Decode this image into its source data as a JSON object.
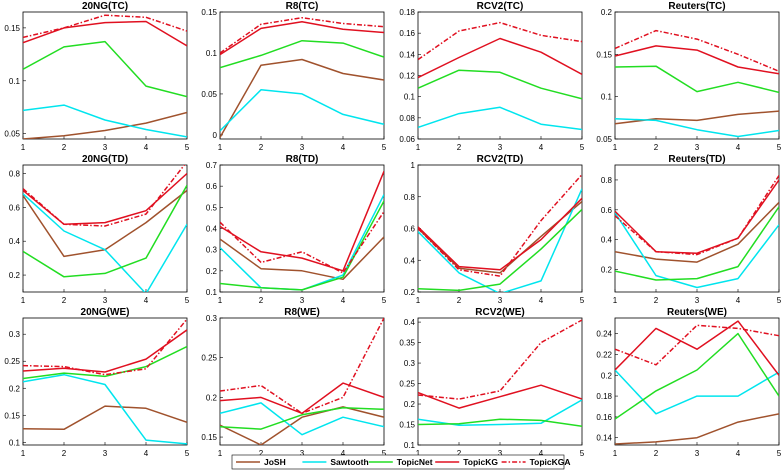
{
  "chart_data": [
    {
      "type": "line",
      "title": "20NG(TC)",
      "x": [
        1,
        2,
        3,
        4,
        5
      ],
      "ylim": [
        0.045,
        0.165
      ],
      "yticks": [
        0.05,
        0.1,
        0.15
      ],
      "ytick_labels": [
        "0.05",
        "0.1",
        "0.15"
      ],
      "series": [
        {
          "name": "JoSH",
          "values": [
            0.045,
            0.048,
            0.053,
            0.06,
            0.07
          ]
        },
        {
          "name": "Sawtooth",
          "values": [
            0.072,
            0.077,
            0.063,
            0.054,
            0.047
          ]
        },
        {
          "name": "TopicNet",
          "values": [
            0.111,
            0.132,
            0.137,
            0.095,
            0.085
          ]
        },
        {
          "name": "TopicKG",
          "values": [
            0.136,
            0.15,
            0.155,
            0.156,
            0.133
          ]
        },
        {
          "name": "TopicKGA",
          "values": [
            0.141,
            0.15,
            0.162,
            0.16,
            0.147
          ]
        }
      ]
    },
    {
      "type": "line",
      "title": "R8(TC)",
      "x": [
        1,
        2,
        3,
        4,
        5
      ],
      "ylim": [
        -0.005,
        0.15
      ],
      "yticks": [
        0,
        0.05,
        0.1,
        0.15
      ],
      "ytick_labels": [
        "0",
        "0.05",
        "0.1",
        "0.15"
      ],
      "series": [
        {
          "name": "JoSH",
          "values": [
            -0.003,
            0.085,
            0.092,
            0.075,
            0.067
          ]
        },
        {
          "name": "Sawtooth",
          "values": [
            0.005,
            0.055,
            0.05,
            0.025,
            0.013
          ]
        },
        {
          "name": "TopicNet",
          "values": [
            0.082,
            0.097,
            0.115,
            0.112,
            0.095
          ]
        },
        {
          "name": "TopicKG",
          "values": [
            0.098,
            0.13,
            0.138,
            0.129,
            0.125
          ]
        },
        {
          "name": "TopicKGA",
          "values": [
            0.1,
            0.135,
            0.143,
            0.136,
            0.132
          ]
        }
      ]
    },
    {
      "type": "line",
      "title": "RCV2(TC)",
      "x": [
        1,
        2,
        3,
        4,
        5
      ],
      "ylim": [
        0.06,
        0.18
      ],
      "yticks": [
        0.06,
        0.08,
        0.1,
        0.12,
        0.14,
        0.16,
        0.18
      ],
      "ytick_labels": [
        "0.06",
        "0.08",
        "0.1",
        "0.12",
        "0.14",
        "0.16",
        "0.18"
      ],
      "series": [
        {
          "name": "Sawtooth",
          "values": [
            0.071,
            0.084,
            0.09,
            0.074,
            0.069
          ]
        },
        {
          "name": "TopicNet",
          "values": [
            0.108,
            0.125,
            0.123,
            0.108,
            0.098
          ]
        },
        {
          "name": "TopicKG",
          "values": [
            0.118,
            0.137,
            0.155,
            0.142,
            0.121
          ]
        },
        {
          "name": "TopicKGA",
          "values": [
            0.135,
            0.162,
            0.17,
            0.158,
            0.152
          ]
        }
      ]
    },
    {
      "type": "line",
      "title": "Reuters(TC)",
      "x": [
        1,
        2,
        3,
        4,
        5
      ],
      "ylim": [
        0.05,
        0.2
      ],
      "yticks": [
        0.05,
        0.1,
        0.15,
        0.2
      ],
      "ytick_labels": [
        "0.05",
        "0.1",
        "0.15",
        "0.2"
      ],
      "series": [
        {
          "name": "JoSH",
          "values": [
            0.068,
            0.074,
            0.072,
            0.079,
            0.083
          ]
        },
        {
          "name": "Sawtooth",
          "values": [
            0.074,
            0.072,
            0.061,
            0.053,
            0.06
          ]
        },
        {
          "name": "TopicNet",
          "values": [
            0.135,
            0.136,
            0.106,
            0.117,
            0.105
          ]
        },
        {
          "name": "TopicKG",
          "values": [
            0.148,
            0.16,
            0.155,
            0.135,
            0.127
          ]
        },
        {
          "name": "TopicKGA",
          "values": [
            0.157,
            0.178,
            0.168,
            0.15,
            0.13
          ]
        }
      ]
    },
    {
      "type": "line",
      "title": "20NG(TD)",
      "x": [
        1,
        2,
        3,
        4,
        5
      ],
      "ylim": [
        0.1,
        0.85
      ],
      "yticks": [
        0.2,
        0.4,
        0.6,
        0.8
      ],
      "ytick_labels": [
        "0.2",
        "0.4",
        "0.6",
        "0.8"
      ],
      "series": [
        {
          "name": "JoSH",
          "values": [
            0.67,
            0.31,
            0.35,
            0.51,
            0.7
          ]
        },
        {
          "name": "Sawtooth",
          "values": [
            0.68,
            0.46,
            0.35,
            0.09,
            0.5
          ]
        },
        {
          "name": "TopicNet",
          "values": [
            0.34,
            0.19,
            0.21,
            0.3,
            0.73
          ]
        },
        {
          "name": "TopicKG",
          "values": [
            0.7,
            0.5,
            0.51,
            0.58,
            0.8
          ]
        },
        {
          "name": "TopicKGA",
          "values": [
            0.71,
            0.5,
            0.49,
            0.56,
            0.87
          ]
        }
      ]
    },
    {
      "type": "line",
      "title": "R8(TD)",
      "x": [
        1,
        2,
        3,
        4,
        5
      ],
      "ylim": [
        0.1,
        0.7
      ],
      "yticks": [
        0.1,
        0.2,
        0.3,
        0.4,
        0.5,
        0.6,
        0.7
      ],
      "ytick_labels": [
        "0.1",
        "0.2",
        "0.3",
        "0.4",
        "0.5",
        "0.6",
        "0.7"
      ],
      "series": [
        {
          "name": "JoSH",
          "values": [
            0.35,
            0.21,
            0.2,
            0.16,
            0.36
          ]
        },
        {
          "name": "Sawtooth",
          "values": [
            0.31,
            0.12,
            0.11,
            0.18,
            0.56
          ]
        },
        {
          "name": "TopicNet",
          "values": [
            0.14,
            0.12,
            0.11,
            0.17,
            0.53
          ]
        },
        {
          "name": "TopicKG",
          "values": [
            0.41,
            0.29,
            0.26,
            0.2,
            0.67
          ]
        },
        {
          "name": "TopicKGA",
          "values": [
            0.43,
            0.24,
            0.29,
            0.19,
            0.48
          ]
        }
      ]
    },
    {
      "type": "line",
      "title": "RCV2(TD)",
      "x": [
        1,
        2,
        3,
        4,
        5
      ],
      "ylim": [
        0.2,
        1.0
      ],
      "yticks": [
        0.2,
        0.4,
        0.6,
        0.8,
        1.0
      ],
      "ytick_labels": [
        "0.2",
        "0.4",
        "0.6",
        "0.8",
        "1"
      ],
      "series": [
        {
          "name": "JoSH",
          "values": [
            0.6,
            0.35,
            0.32,
            0.55,
            0.77
          ]
        },
        {
          "name": "Sawtooth",
          "values": [
            0.58,
            0.32,
            0.19,
            0.27,
            0.85
          ]
        },
        {
          "name": "TopicNet",
          "values": [
            0.22,
            0.21,
            0.25,
            0.47,
            0.72
          ]
        },
        {
          "name": "TopicKG",
          "values": [
            0.61,
            0.36,
            0.34,
            0.53,
            0.79
          ]
        },
        {
          "name": "TopicKGA",
          "values": [
            0.6,
            0.34,
            0.3,
            0.65,
            0.94
          ]
        }
      ]
    },
    {
      "type": "line",
      "title": "Reuters(TD)",
      "x": [
        1,
        2,
        3,
        4,
        5
      ],
      "ylim": [
        0.05,
        0.9
      ],
      "yticks": [
        0.2,
        0.4,
        0.6,
        0.8
      ],
      "ytick_labels": [
        "0.2",
        "0.4",
        "0.6",
        "0.8"
      ],
      "series": [
        {
          "name": "JoSH",
          "values": [
            0.32,
            0.27,
            0.25,
            0.37,
            0.65
          ]
        },
        {
          "name": "Sawtooth",
          "values": [
            0.58,
            0.16,
            0.08,
            0.14,
            0.5
          ]
        },
        {
          "name": "TopicNet",
          "values": [
            0.19,
            0.13,
            0.14,
            0.22,
            0.62
          ]
        },
        {
          "name": "TopicKG",
          "values": [
            0.59,
            0.32,
            0.31,
            0.41,
            0.8
          ]
        },
        {
          "name": "TopicKGA",
          "values": [
            0.56,
            0.32,
            0.3,
            0.41,
            0.83
          ]
        }
      ]
    },
    {
      "type": "line",
      "title": "20NG(WE)",
      "x": [
        1,
        2,
        3,
        4,
        5
      ],
      "ylim": [
        0.095,
        0.33
      ],
      "yticks": [
        0.1,
        0.15,
        0.2,
        0.25,
        0.3
      ],
      "ytick_labels": [
        "0.1",
        "0.15",
        "0.2",
        "0.25",
        "0.3"
      ],
      "series": [
        {
          "name": "JoSH",
          "values": [
            0.125,
            0.124,
            0.167,
            0.163,
            0.137
          ]
        },
        {
          "name": "Sawtooth",
          "values": [
            0.212,
            0.225,
            0.207,
            0.104,
            0.097
          ]
        },
        {
          "name": "TopicNet",
          "values": [
            0.218,
            0.228,
            0.222,
            0.24,
            0.277
          ]
        },
        {
          "name": "TopicKG",
          "values": [
            0.232,
            0.237,
            0.23,
            0.254,
            0.308
          ]
        },
        {
          "name": "TopicKGA",
          "values": [
            0.242,
            0.24,
            0.225,
            0.236,
            0.328
          ]
        }
      ]
    },
    {
      "type": "line",
      "title": "R8(WE)",
      "x": [
        1,
        2,
        3,
        4,
        5
      ],
      "ylim": [
        0.14,
        0.3
      ],
      "yticks": [
        0.15,
        0.2,
        0.25,
        0.3
      ],
      "ytick_labels": [
        "0.15",
        "0.2",
        "0.25",
        "0.3"
      ],
      "series": [
        {
          "name": "JoSH",
          "values": [
            0.165,
            0.14,
            0.175,
            0.188,
            0.175
          ]
        },
        {
          "name": "Sawtooth",
          "values": [
            0.18,
            0.193,
            0.153,
            0.175,
            0.163
          ]
        },
        {
          "name": "TopicNet",
          "values": [
            0.163,
            0.16,
            0.178,
            0.187,
            0.185
          ]
        },
        {
          "name": "TopicKG",
          "values": [
            0.196,
            0.2,
            0.18,
            0.218,
            0.2
          ]
        },
        {
          "name": "TopicKGA",
          "values": [
            0.208,
            0.215,
            0.18,
            0.2,
            0.3
          ]
        }
      ]
    },
    {
      "type": "line",
      "title": "RCV2(WE)",
      "x": [
        1,
        2,
        3,
        4,
        5
      ],
      "ylim": [
        0.1,
        0.41
      ],
      "yticks": [
        0.1,
        0.15,
        0.2,
        0.25,
        0.3,
        0.35,
        0.4
      ],
      "ytick_labels": [
        "0.1",
        "0.15",
        "0.2",
        "0.25",
        "0.3",
        "0.35",
        "0.4"
      ],
      "series": [
        {
          "name": "Sawtooth",
          "values": [
            0.163,
            0.148,
            0.15,
            0.153,
            0.21
          ]
        },
        {
          "name": "TopicNet",
          "values": [
            0.15,
            0.152,
            0.163,
            0.16,
            0.146
          ]
        },
        {
          "name": "TopicKG",
          "values": [
            0.228,
            0.19,
            0.218,
            0.246,
            0.212
          ]
        },
        {
          "name": "TopicKGA",
          "values": [
            0.222,
            0.212,
            0.232,
            0.35,
            0.405
          ]
        }
      ]
    },
    {
      "type": "line",
      "title": "Reuters(WE)",
      "x": [
        1,
        2,
        3,
        4,
        5
      ],
      "ylim": [
        0.133,
        0.255
      ],
      "yticks": [
        0.14,
        0.16,
        0.18,
        0.2,
        0.22,
        0.24
      ],
      "ytick_labels": [
        "0.14",
        "0.16",
        "0.18",
        "0.2",
        "0.22",
        "0.24"
      ],
      "series": [
        {
          "name": "JoSH",
          "values": [
            0.134,
            0.136,
            0.14,
            0.155,
            0.163
          ]
        },
        {
          "name": "Sawtooth",
          "values": [
            0.205,
            0.163,
            0.18,
            0.18,
            0.203
          ]
        },
        {
          "name": "TopicNet",
          "values": [
            0.158,
            0.185,
            0.205,
            0.24,
            0.18
          ]
        },
        {
          "name": "TopicKG",
          "values": [
            0.205,
            0.245,
            0.225,
            0.252,
            0.2
          ]
        },
        {
          "name": "TopicKGA",
          "values": [
            0.225,
            0.21,
            0.248,
            0.245,
            0.238
          ]
        }
      ]
    }
  ],
  "legend": {
    "entries": [
      {
        "name": "JoSH",
        "color": "#a0522d",
        "dashed": false
      },
      {
        "name": "Sawtooth",
        "color": "#00e5ee",
        "dashed": false
      },
      {
        "name": "TopicNet",
        "color": "#22dd22",
        "dashed": false
      },
      {
        "name": "TopicKG",
        "color": "#e01020",
        "dashed": false
      },
      {
        "name": "TopicKGA",
        "color": "#e01020",
        "dashed": true
      }
    ]
  },
  "colors": {
    "JoSH": "#a0522d",
    "Sawtooth": "#00e5ee",
    "TopicNet": "#22dd22",
    "TopicKG": "#e01020",
    "TopicKGA": "#e01020"
  }
}
